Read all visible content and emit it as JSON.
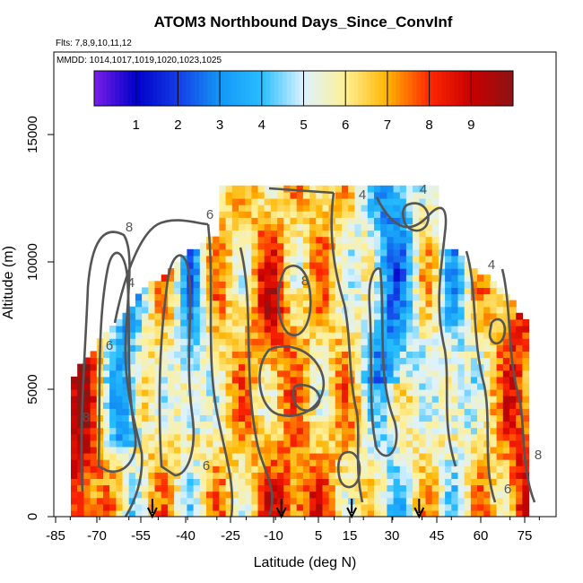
{
  "chart_data": {
    "type": "heatmap",
    "title": "ATOM3 Northbound Days_Since_ConvInf",
    "subtitle_flights": "Flts: 7,8,9,10,11,12",
    "subtitle_dates": "MMDD: 1014,1017,1019,1020,1023,1025",
    "xlabel": "Latitude (deg N)",
    "ylabel": "Altitude (m)",
    "xlim": [
      -88,
      85
    ],
    "ylim": [
      0,
      17500
    ],
    "x_tick_labels": [
      "-85",
      "-70",
      "-55",
      "-40",
      "-25",
      "-10",
      "5",
      "15",
      "30",
      "45",
      "60",
      "75"
    ],
    "x_ticks": [
      -85,
      -70,
      -55,
      -40,
      -25,
      -10,
      5,
      15,
      30,
      45,
      60,
      75
    ],
    "y_ticks": [
      0,
      5000,
      10000,
      15000
    ],
    "y_tick_labels": [
      "0",
      "5000",
      "10000",
      "15000"
    ],
    "colorbar": {
      "range": [
        0,
        10
      ],
      "tick_labels": [
        "1",
        "2",
        "3",
        "4",
        "5",
        "6",
        "7",
        "8",
        "9"
      ],
      "colors": [
        "#7a1fe8",
        "#0000c8",
        "#1e60e6",
        "#1eb4f5",
        "#d2f0ff",
        "#fff0a0",
        "#ffb400",
        "#ff2800",
        "#c80000",
        "#8b1010"
      ]
    },
    "contour_labels": [
      "4",
      "4",
      "4",
      "6",
      "6",
      "8",
      "8",
      "8",
      "6",
      "4",
      "8",
      "6"
    ],
    "flight_markers_lat": [
      -52,
      -8,
      16,
      39
    ],
    "grid": false,
    "legend": "colorbar-top"
  }
}
